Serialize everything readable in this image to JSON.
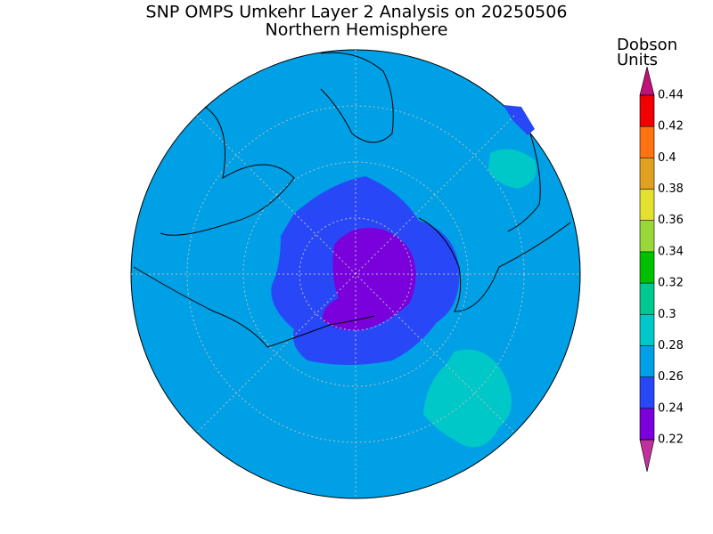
{
  "title": "SNP OMPS Umkehr Layer 2 Analysis on 20250506",
  "subtitle": "Northern Hemisphere",
  "colorbar": {
    "label_lines": [
      "Dobson",
      "Units"
    ],
    "ticks": [
      0.22,
      0.24,
      0.26,
      0.28,
      0.3,
      0.32,
      0.34,
      0.36,
      0.38,
      0.4,
      0.42,
      0.44
    ],
    "range": [
      0.22,
      0.44
    ],
    "under_color": "#c0309a",
    "over_color": "#c0107a",
    "band_colors": [
      "#7a00dc",
      "#2848f8",
      "#00a0e6",
      "#00c8c8",
      "#00c890",
      "#00c000",
      "#98d838",
      "#e4e030",
      "#e0a020",
      "#ff7410",
      "#f00000"
    ]
  }
}
